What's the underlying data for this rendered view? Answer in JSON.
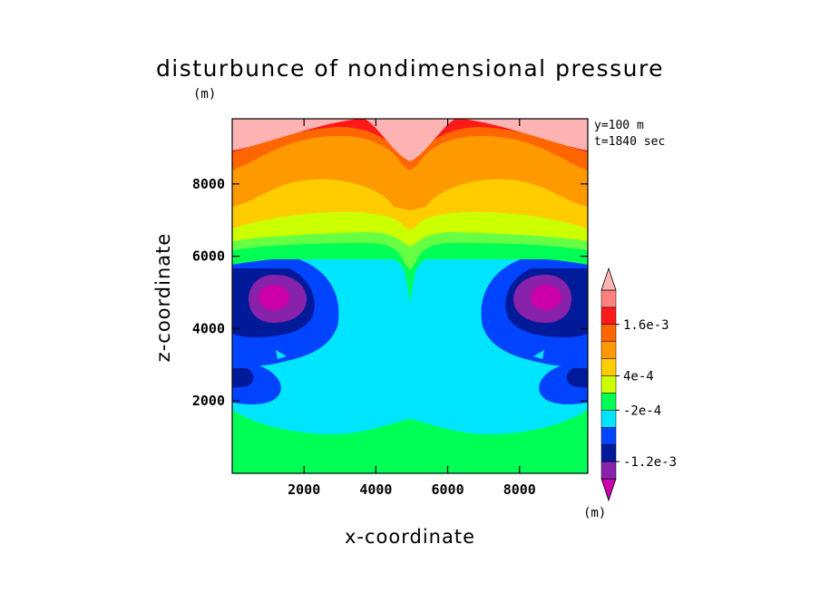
{
  "chart_data": {
    "type": "contour",
    "title": "disturbunce of nondimensional pressure",
    "title_unit": "(m)",
    "xlabel": "x-coordinate",
    "ylabel": "z-coordinate",
    "xlim": [
      0,
      9900
    ],
    "ylim": [
      0,
      9800
    ],
    "x_ticks": [
      "2000",
      "4000",
      "6000",
      "8000"
    ],
    "x_tick_values": [
      2000,
      4000,
      6000,
      8000
    ],
    "y_ticks": [
      "2000",
      "4000",
      "6000",
      "8000"
    ],
    "y_tick_values": [
      2000,
      4000,
      6000,
      8000
    ],
    "annotations": [
      "y=100  m",
      "t=1840 sec"
    ],
    "colorbar": {
      "unit": "(m)",
      "labels": [
        {
          "text": "1.6e-3",
          "value": 0.0016
        },
        {
          "text": "4e-4",
          "value": 0.0004
        },
        {
          "text": "-2e-4",
          "value": -0.0002
        },
        {
          "text": "-1.2e-3",
          "value": -0.0012
        }
      ],
      "colors": [
        "#cc00aa",
        "#8822aa",
        "#001a99",
        "#0044ff",
        "#00e5ff",
        "#00ff55",
        "#ccff00",
        "#ffcc00",
        "#ff9900",
        "#ff6600",
        "#ff1a1a",
        "#ff8080",
        "#ffb3b3"
      ]
    },
    "grid": false
  }
}
